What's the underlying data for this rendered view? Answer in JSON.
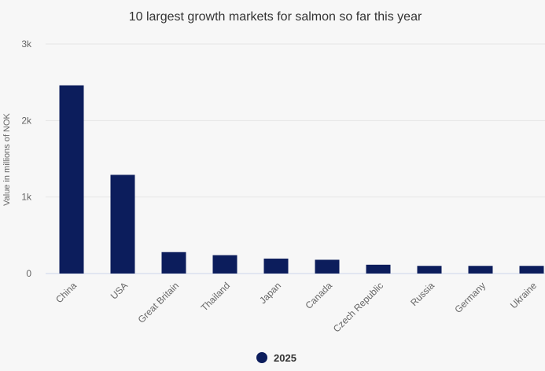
{
  "chart_data": {
    "type": "bar",
    "title": "10 largest growth markets for salmon so far this year",
    "ylabel": "Value in millions of NOK",
    "xlabel": "",
    "categories": [
      "China",
      "USA",
      "Great Britain",
      "Thailand",
      "Japan",
      "Canada",
      "Czech Republic",
      "Russia",
      "Germany",
      "Ukraine"
    ],
    "series": [
      {
        "name": "2025",
        "values": [
          2460,
          1290,
          280,
          240,
          195,
          180,
          115,
          100,
          100,
          100
        ]
      }
    ],
    "ylim": [
      0,
      3000
    ],
    "yticks": [
      {
        "value": 0,
        "label": "0"
      },
      {
        "value": 1000,
        "label": "1k"
      },
      {
        "value": 2000,
        "label": "2k"
      },
      {
        "value": 3000,
        "label": "3k"
      }
    ],
    "grid": true,
    "legend_position": "bottom-center",
    "colors": {
      "bar": "#0c1d5c",
      "grid": "#e6e6e6",
      "background": "#f7f7f7"
    }
  }
}
